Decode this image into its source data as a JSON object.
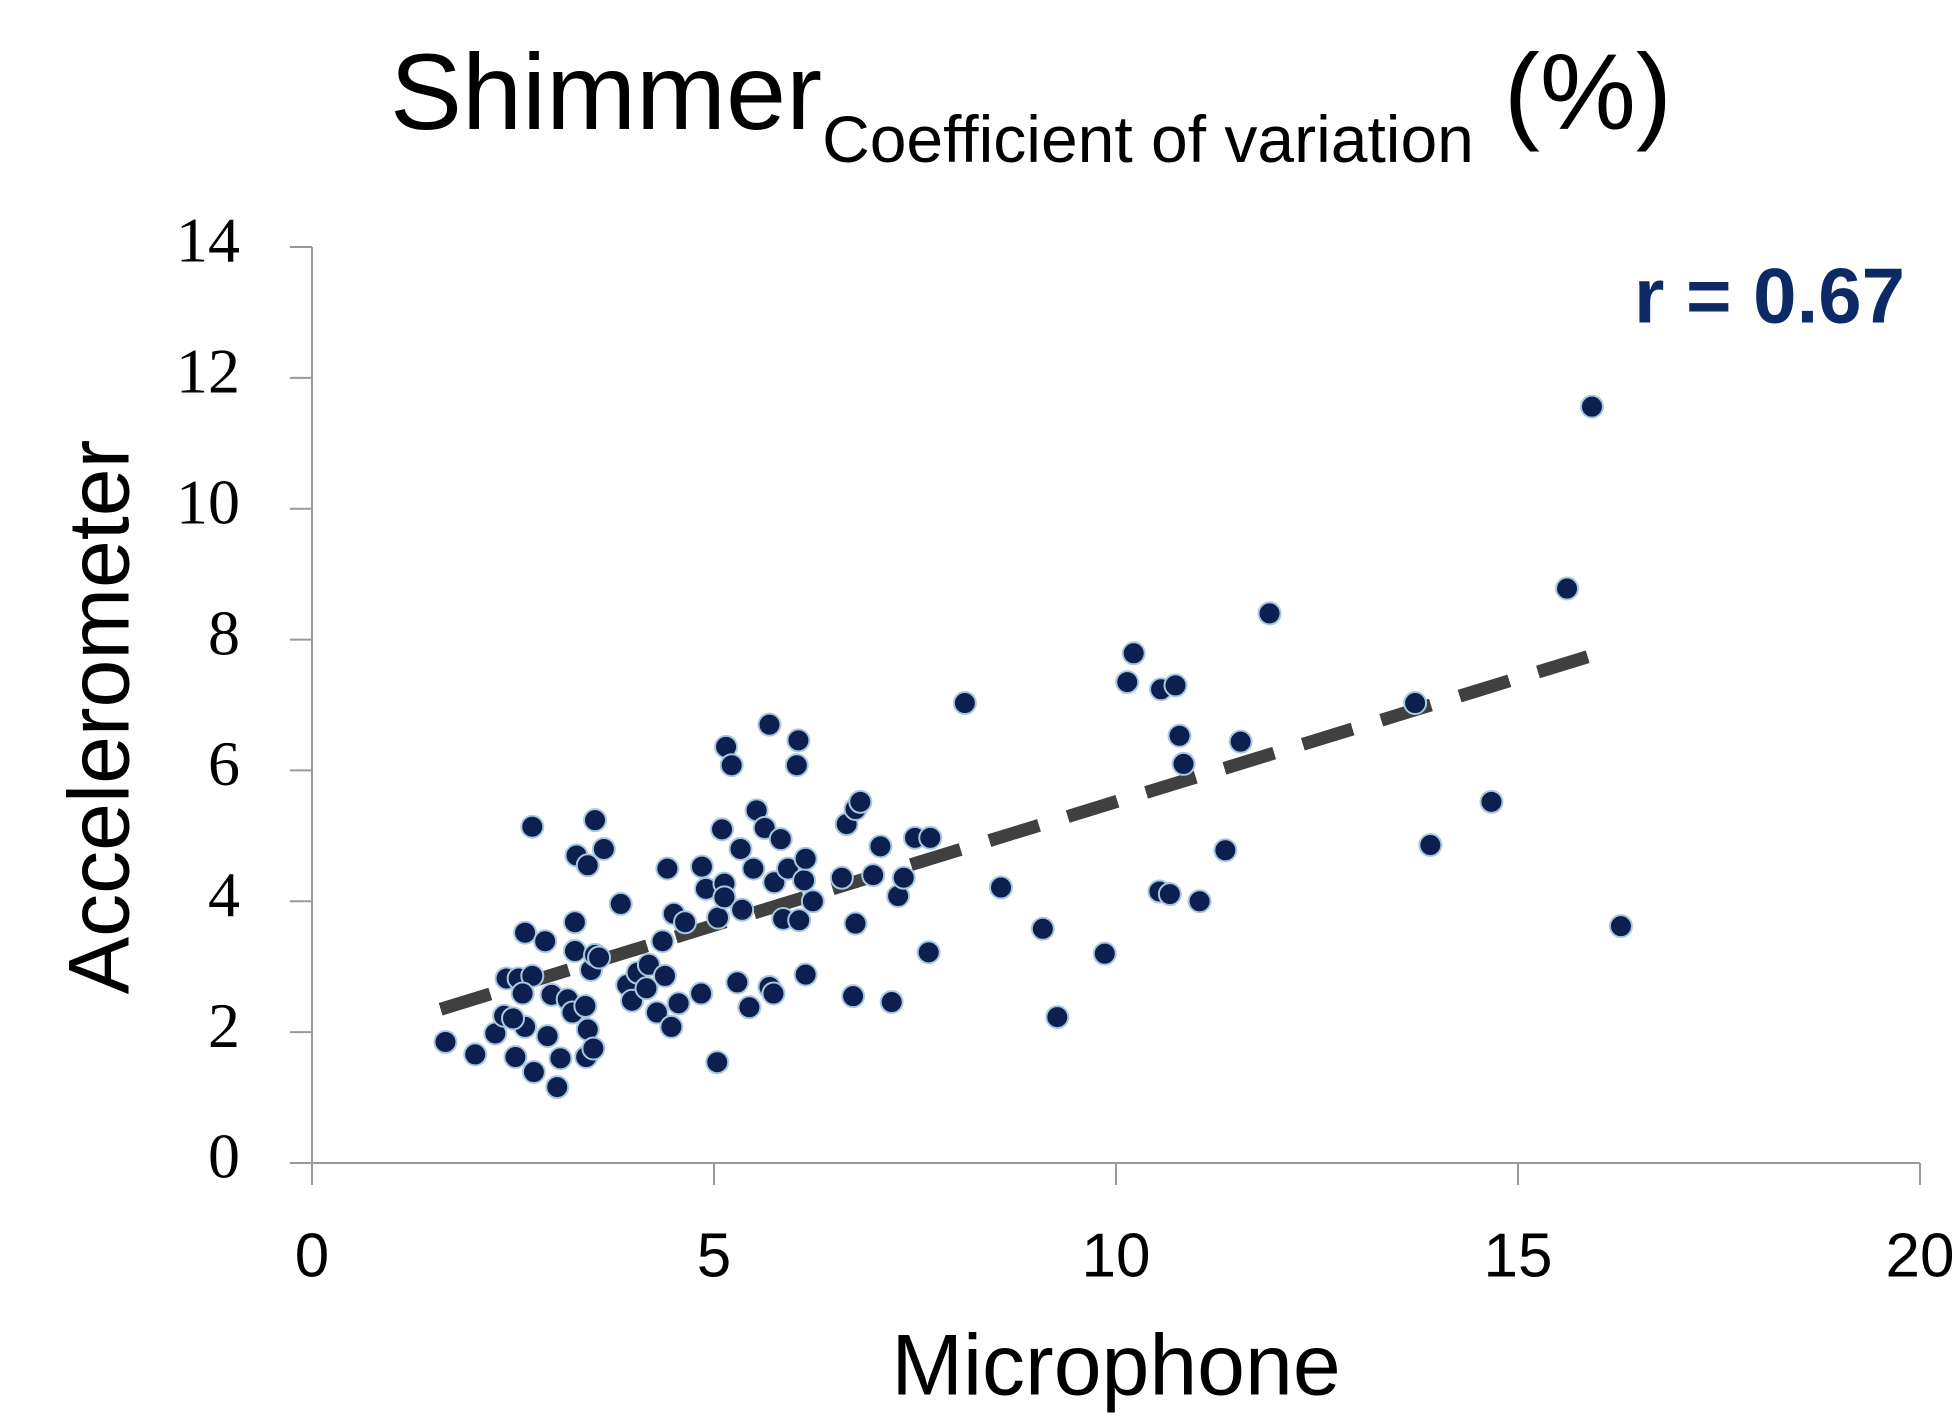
{
  "chart_data": {
    "type": "scatter",
    "title": "Shimmer",
    "title_subscript": "Coefficient of variation",
    "title_suffix": "(%)",
    "x_label": "Microphone",
    "y_label": "Accelerometer",
    "annotation": "r = 0.67",
    "color": "#0d1f4f",
    "edge_color": "#a8c8e0",
    "trend_color": "#404040",
    "xlim": [
      0,
      20
    ],
    "xticks": [
      0,
      5,
      10,
      15,
      20
    ],
    "ylim": [
      0,
      14
    ],
    "yticks": [
      0,
      2,
      4,
      6,
      8,
      10,
      12,
      14
    ],
    "grid": false,
    "trendline": {
      "x": [
        1.6,
        15.9
      ],
      "y": [
        2.35,
        7.75
      ]
    },
    "x": [
      1.66,
      2.03,
      2.28,
      2.39,
      2.53,
      2.42,
      2.57,
      2.65,
      2.74,
      2.74,
      2.65,
      2.62,
      2.5,
      2.76,
      2.9,
      2.93,
      2.98,
      3.09,
      3.05,
      3.18,
      3.24,
      3.27,
      3.27,
      3.29,
      3.4,
      3.43,
      3.43,
      3.41,
      3.5,
      3.47,
      3.52,
      3.57,
      3.52,
      3.63,
      3.84,
      3.92,
      3.98,
      4.05,
      4.16,
      4.19,
      4.29,
      4.39,
      4.42,
      4.36,
      4.47,
      4.5,
      4.56,
      4.64,
      4.84,
      4.85,
      4.9,
      5.04,
      5.05,
      5.1,
      5.15,
      5.13,
      5.13,
      5.22,
      5.29,
      5.33,
      5.35,
      5.44,
      5.49,
      5.53,
      5.63,
      5.69,
      5.69,
      5.74,
      5.75,
      5.83,
      5.86,
      5.92,
      6.05,
      6.03,
      6.06,
      6.12,
      6.14,
      6.14,
      6.23,
      6.59,
      6.65,
      6.76,
      6.82,
      6.76,
      6.73,
      6.98,
      7.07,
      7.21,
      7.29,
      7.36,
      7.5,
      7.69,
      7.67,
      8.12,
      8.57,
      9.09,
      9.27,
      9.86,
      10.14,
      10.22,
      10.56,
      10.74,
      10.54,
      10.67,
      10.79,
      10.84,
      11.04,
      11.36,
      11.55,
      11.91,
      13.72,
      13.91,
      14.67,
      15.61,
      15.92,
      16.28
    ],
    "values": [
      1.85,
      1.66,
      1.98,
      2.25,
      1.62,
      2.82,
      2.82,
      3.52,
      5.14,
      2.86,
      2.08,
      2.59,
      2.21,
      1.39,
      3.39,
      1.94,
      2.57,
      1.6,
      1.16,
      2.5,
      2.3,
      3.68,
      3.24,
      4.7,
      2.4,
      4.55,
      2.04,
      1.62,
      1.75,
      2.95,
      3.18,
      3.14,
      5.24,
      4.8,
      3.96,
      2.72,
      2.48,
      2.91,
      2.67,
      3.03,
      2.3,
      2.86,
      4.5,
      3.39,
      2.08,
      3.81,
      2.44,
      3.68,
      2.59,
      4.53,
      4.19,
      1.54,
      3.75,
      5.1,
      6.36,
      4.27,
      4.06,
      6.08,
      2.76,
      4.8,
      3.87,
      2.38,
      4.5,
      5.39,
      5.12,
      6.7,
      2.69,
      2.59,
      4.29,
      4.95,
      3.73,
      4.5,
      6.46,
      6.08,
      3.71,
      4.32,
      4.65,
      2.88,
      4.0,
      4.36,
      5.18,
      5.41,
      5.52,
      3.66,
      2.55,
      4.4,
      4.84,
      2.46,
      4.08,
      4.36,
      4.97,
      4.97,
      3.22,
      7.03,
      4.21,
      3.58,
      2.23,
      3.2,
      7.35,
      7.79,
      7.24,
      7.3,
      4.15,
      4.11,
      6.53,
      6.1,
      4.0,
      4.78,
      6.44,
      8.4,
      7.03,
      4.86,
      5.52,
      8.78,
      11.56,
      3.62
    ]
  }
}
